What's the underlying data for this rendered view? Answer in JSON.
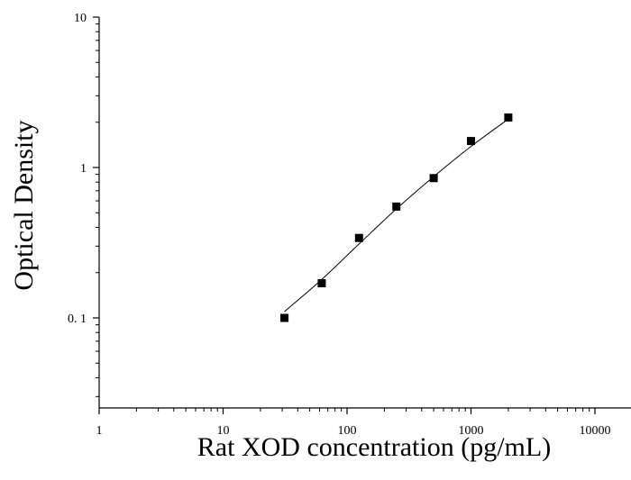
{
  "chart_data": {
    "type": "scatter",
    "title": "",
    "xlabel": "Rat XOD concentration (pg/mL)",
    "ylabel": "Optical Density",
    "x_scale": "log",
    "y_scale": "log",
    "xlim": [
      1,
      13000
    ],
    "ylim": [
      0.025,
      10
    ],
    "x_ticks": [
      1,
      10,
      100,
      1000,
      10000
    ],
    "x_tick_labels": [
      "1",
      "10",
      "100",
      "1000",
      "10000"
    ],
    "y_ticks": [
      0.1,
      1,
      10
    ],
    "y_tick_labels": [
      "0. 1",
      "1",
      "10"
    ],
    "grid": false,
    "legend": "none",
    "series": [
      {
        "marker": "square",
        "color": "#000000",
        "x": [
          31.25,
          62.5,
          125,
          250,
          500,
          1000,
          2000
        ],
        "y": [
          0.1,
          0.17,
          0.34,
          0.55,
          0.85,
          1.5,
          2.15
        ]
      }
    ],
    "fit_curve": {
      "color": "#000000",
      "x": [
        31.25,
        62.5,
        125,
        250,
        500,
        1000,
        2000
      ],
      "y": [
        0.11,
        0.18,
        0.31,
        0.53,
        0.87,
        1.38,
        2.1
      ]
    }
  }
}
